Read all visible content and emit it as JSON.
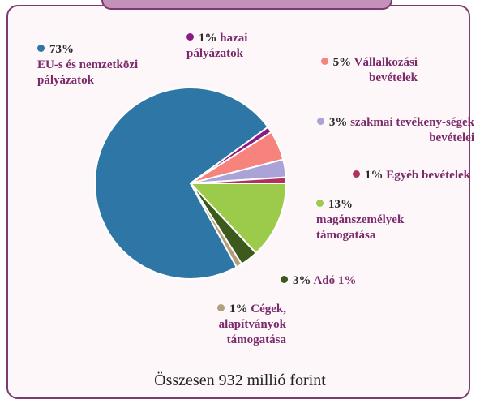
{
  "chart_data": {
    "type": "pie",
    "categories": [
      "EU-s és nemzetközi pályázatok",
      "hazai pályázatok",
      "Vállalkozási bevételek",
      "szakmai tevékeny-ségek bevételei",
      "Egyéb bevételek",
      "magánszemélyek támogatása",
      "Adó 1%",
      "Cégek, alapítványok támogatása"
    ],
    "values": [
      73,
      1,
      5,
      3,
      1,
      13,
      3,
      1
    ],
    "value_labels": [
      "73%",
      "1%",
      "5%",
      "3%",
      "1%",
      "13%",
      "3%",
      "1%"
    ],
    "colors": [
      "#2e76a6",
      "#8c1a86",
      "#f6847c",
      "#a9a3d8",
      "#b2305e",
      "#9ccb4c",
      "#3c5a1c",
      "#b39f7c"
    ],
    "total": "Összesen 932 millió forint"
  }
}
